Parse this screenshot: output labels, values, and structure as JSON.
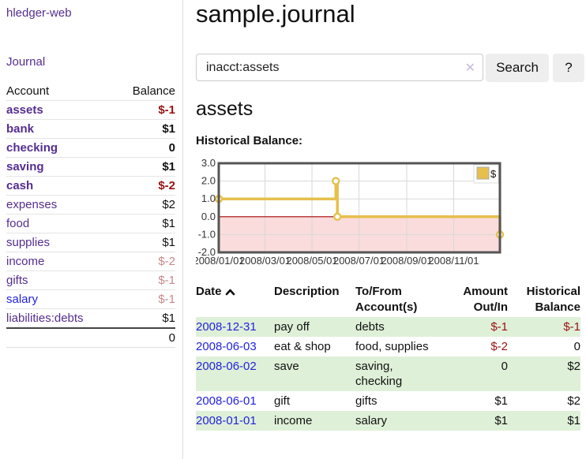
{
  "app": {
    "title": "hledger-web"
  },
  "colors": {
    "link_purple": "#552d90",
    "link_blue": "#2222dd",
    "neg_strong": "#991111",
    "neg_soft": "#c98888",
    "row_green": "#dff0d8",
    "lavender": "#c7bcdc",
    "chart_gold": "#e6bf4d",
    "chart_pink": "#fadcdc",
    "chart_zero_line": "#a40000"
  },
  "sidebar": {
    "journal_link": "Journal",
    "table": {
      "account_header": "Account",
      "balance_header": "Balance",
      "accounts": [
        {
          "name": "assets",
          "depth": 1,
          "bold": true,
          "balance": "$-1",
          "balance_style": "neg-strong",
          "link_style": "purple"
        },
        {
          "name": "bank",
          "depth": 2,
          "bold": true,
          "balance": "$1",
          "balance_style": "pos",
          "link_style": "purple"
        },
        {
          "name": "checking",
          "depth": 3,
          "bold": true,
          "balance": "0",
          "balance_style": "pos",
          "link_style": "purple"
        },
        {
          "name": "saving",
          "depth": 3,
          "bold": true,
          "balance": "$1",
          "balance_style": "pos",
          "link_style": "purple"
        },
        {
          "name": "cash",
          "depth": 2,
          "bold": true,
          "balance": "$-2",
          "balance_style": "neg-strong",
          "link_style": "purple"
        },
        {
          "name": "expenses",
          "depth": 1,
          "bold": false,
          "balance": "$2",
          "balance_style": "pos",
          "link_style": "purple"
        },
        {
          "name": "food",
          "depth": 2,
          "bold": false,
          "balance": "$1",
          "balance_style": "pos",
          "link_style": "purple"
        },
        {
          "name": "supplies",
          "depth": 2,
          "bold": false,
          "balance": "$1",
          "balance_style": "pos",
          "link_style": "purple"
        },
        {
          "name": "income",
          "depth": 1,
          "bold": false,
          "balance": "$-2",
          "balance_style": "neg-soft",
          "link_style": "purple"
        },
        {
          "name": "gifts",
          "depth": 2,
          "bold": false,
          "balance": "$-1",
          "balance_style": "neg-soft",
          "link_style": "purple"
        },
        {
          "name": "salary",
          "depth": 2,
          "bold": false,
          "balance": "$-1",
          "balance_style": "neg-soft",
          "link_style": "blue"
        },
        {
          "name": "liabilities:debts",
          "depth": 1,
          "bold": false,
          "balance": "$1",
          "balance_style": "pos",
          "link_style": "purple"
        }
      ],
      "total": "0"
    }
  },
  "header": {
    "title": "sample.journal"
  },
  "search": {
    "value": "inacct:assets",
    "clear_icon": "✕",
    "button_label": "Search",
    "help_label": "?"
  },
  "account_page": {
    "heading": "assets",
    "chart_label": "Historical Balance:"
  },
  "chart_data": {
    "type": "line",
    "style": "step-after",
    "title": "Historical Balance",
    "series": [
      {
        "name": "$",
        "color": "#e6bf4d",
        "points": [
          [
            "2008-01-01",
            1
          ],
          [
            "2008-06-01",
            2
          ],
          [
            "2008-06-03",
            0
          ],
          [
            "2008-12-31",
            -1
          ]
        ]
      }
    ],
    "x_domain": [
      "2008-01-01",
      "2008-12-31"
    ],
    "ylim": [
      -2,
      3
    ],
    "y_ticks": [
      "3.0",
      "2.0",
      "1.0",
      "0.0",
      "-1.0",
      "-2.0"
    ],
    "x_ticks": [
      {
        "label": "2008/01/01",
        "date": "2008-01-01"
      },
      {
        "label": "2008/03/01",
        "date": "2008-03-01"
      },
      {
        "label": "2008/05/01",
        "date": "2008-05-01"
      },
      {
        "label": "2008/07/01",
        "date": "2008-07-01"
      },
      {
        "label": "2008/09/01",
        "date": "2008-09-01"
      },
      {
        "label": "2008/11/01",
        "date": "2008-11-01"
      }
    ],
    "legend": {
      "label": "$",
      "position": "top-right"
    },
    "grid": true,
    "negative_region_fill": "#fadcdc",
    "zero_line_color": "#a40000"
  },
  "register": {
    "columns": {
      "date": "Date",
      "description": "Description",
      "tofrom": "To/From Account(s)",
      "amount": "Amount Out/In",
      "balance": "Historical Balance"
    },
    "rows": [
      {
        "date": "2008-12-31",
        "description": "pay off",
        "accounts": "debts",
        "amount": "$-1",
        "amount_neg": true,
        "balance": "$-1",
        "balance_neg": true,
        "green": true
      },
      {
        "date": "2008-06-03",
        "description": "eat & shop",
        "accounts": "food, supplies",
        "amount": "$-2",
        "amount_neg": true,
        "balance": "0",
        "balance_neg": false,
        "green": false
      },
      {
        "date": "2008-06-02",
        "description": "save",
        "accounts": "saving, checking",
        "amount": "0",
        "amount_neg": false,
        "balance": "$2",
        "balance_neg": false,
        "green": true
      },
      {
        "date": "2008-06-01",
        "description": "gift",
        "accounts": "gifts",
        "amount": "$1",
        "amount_neg": false,
        "balance": "$2",
        "balance_neg": false,
        "green": false
      },
      {
        "date": "2008-01-01",
        "description": "income",
        "accounts": "salary",
        "amount": "$1",
        "amount_neg": false,
        "balance": "$1",
        "balance_neg": false,
        "green": true
      }
    ]
  }
}
